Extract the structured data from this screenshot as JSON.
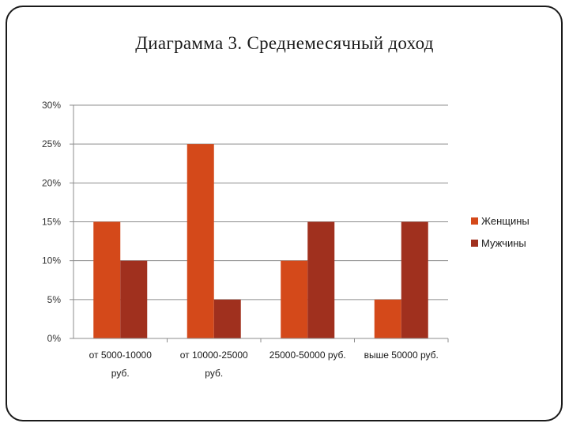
{
  "title": "Диаграмма 3. Среднемесячный доход",
  "chart_data": {
    "type": "bar",
    "title": "Диаграмма 3. Среднемесячный доход",
    "categories": [
      [
        "от 5000-10000",
        "руб."
      ],
      [
        "от 10000-25000",
        "руб."
      ],
      [
        "25000-50000 руб."
      ],
      [
        "выше 50000 руб."
      ]
    ],
    "series": [
      {
        "name": "Женщины",
        "color": "#d4491a",
        "values": [
          15,
          25,
          10,
          5
        ]
      },
      {
        "name": "Мужчины",
        "color": "#a0301e",
        "values": [
          10,
          5,
          15,
          15
        ]
      }
    ],
    "y_ticks": [
      "0%",
      "5%",
      "10%",
      "15%",
      "20%",
      "25%",
      "30%"
    ],
    "ylim": [
      0,
      30
    ],
    "y_unit": "%",
    "grid": true,
    "legend_position": "right",
    "xlabel": "",
    "ylabel": ""
  }
}
